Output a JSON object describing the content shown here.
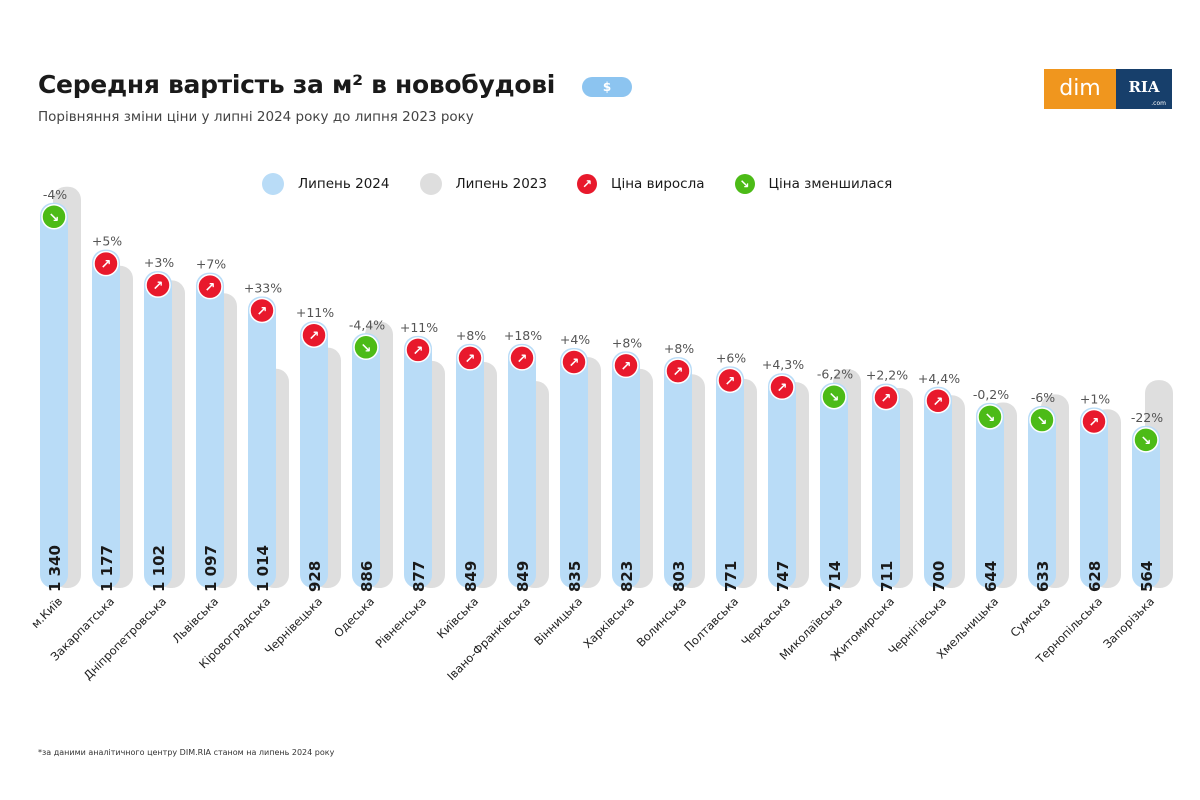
{
  "header": {
    "title": "Середня вартість за м² в новобудові",
    "currency_badge": "$",
    "subtitle": "Порівняння зміни ціни у липні 2024 року до липня 2023 року",
    "logo": {
      "left": "dim",
      "right": "RIA",
      "right_small": ".com"
    }
  },
  "legend": {
    "items": [
      {
        "label": "Липень 2024",
        "color": "#b9dcf7"
      },
      {
        "label": "Липень 2023",
        "color": "#dedede"
      },
      {
        "label": "Ціна виросла",
        "color": "#e8192c",
        "icon": "arrow-up-right-icon"
      },
      {
        "label": "Ціна зменшилася",
        "color": "#4cbb17",
        "icon": "arrow-down-right-icon"
      }
    ]
  },
  "footnote": "*за даними аналітичного центру DIM.RIA станом на липень 2024 року",
  "chart_data": {
    "type": "bar",
    "categories": [
      "м.Київ",
      "Закарпатська",
      "Дніпропетровська",
      "Львівська",
      "Кіровоградська",
      "Чернівецька",
      "Одеська",
      "Рівненська",
      "Київська",
      "Івано-Франківська",
      "Вінницька",
      "Харківська",
      "Волинська",
      "Полтавська",
      "Черкаська",
      "Миколаївська",
      "Житомирська",
      "Чернігівська",
      "Хмельницька",
      "Сумська",
      "Тернопільська",
      "Запорізька"
    ],
    "series": [
      {
        "name": "Липень 2024",
        "values": [
          1340,
          1177,
          1102,
          1097,
          1014,
          928,
          886,
          877,
          849,
          849,
          835,
          823,
          803,
          771,
          747,
          714,
          711,
          700,
          644,
          633,
          628,
          564
        ],
        "value_labels": [
          "1 340",
          "1 177",
          "1 102",
          "1 097",
          "1 014",
          "928",
          "886",
          "877",
          "849",
          "849",
          "835",
          "823",
          "803",
          "771",
          "747",
          "714",
          "711",
          "700",
          "644",
          "633",
          "628",
          "564"
        ]
      }
    ],
    "change_pct": [
      -4,
      5,
      3,
      7,
      33,
      11,
      -4.4,
      11,
      8,
      18,
      4,
      8,
      8,
      6,
      4.3,
      -6.2,
      2.2,
      4.4,
      -0.2,
      -6,
      1,
      -22
    ],
    "change_labels": [
      "-4%",
      "+5%",
      "+3%",
      "+7%",
      "+33%",
      "+11%",
      "-4,4%",
      "+11%",
      "+8%",
      "+18%",
      "+4%",
      "+8%",
      "+8%",
      "+6%",
      "+4,3%",
      "-6,2%",
      "+2,2%",
      "+4,4%",
      "-0,2%",
      "-6%",
      "+1%",
      "-22%"
    ],
    "colors": {
      "bar_2024": "#b9dcf7",
      "bar_2023": "#dedede",
      "up": "#e8192c",
      "down": "#4cbb17"
    },
    "grid": false
  }
}
